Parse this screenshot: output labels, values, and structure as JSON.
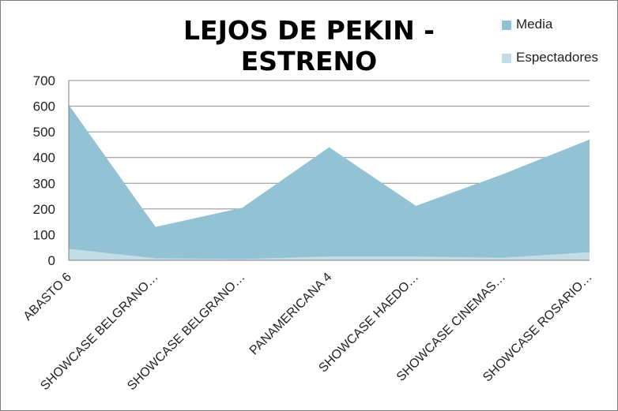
{
  "chart_data": {
    "type": "area",
    "title": "LEJOS DE PEKIN - ESTRENO",
    "categories": [
      "ABASTO 6",
      "SHOWCASE  BELGRANO…",
      "SHOWCASE  BELGRANO…",
      "PANAMERICANA 4",
      "SHOWCASE HAEDO…",
      "SHOWCASE CINEMAS…",
      "SHOWCASE ROSARIO…"
    ],
    "series": [
      {
        "name": "Media",
        "values": [
          605,
          130,
          205,
          440,
          212,
          335,
          470
        ],
        "color": "#92c2d4"
      },
      {
        "name": "Espectadores",
        "values": [
          45,
          8,
          5,
          15,
          15,
          10,
          32
        ],
        "color": "#c3dde7"
      }
    ],
    "ylim": [
      0,
      700
    ],
    "yticks": [
      0,
      100,
      200,
      300,
      400,
      500,
      600,
      700
    ],
    "grid": true,
    "legend": "top-right"
  }
}
